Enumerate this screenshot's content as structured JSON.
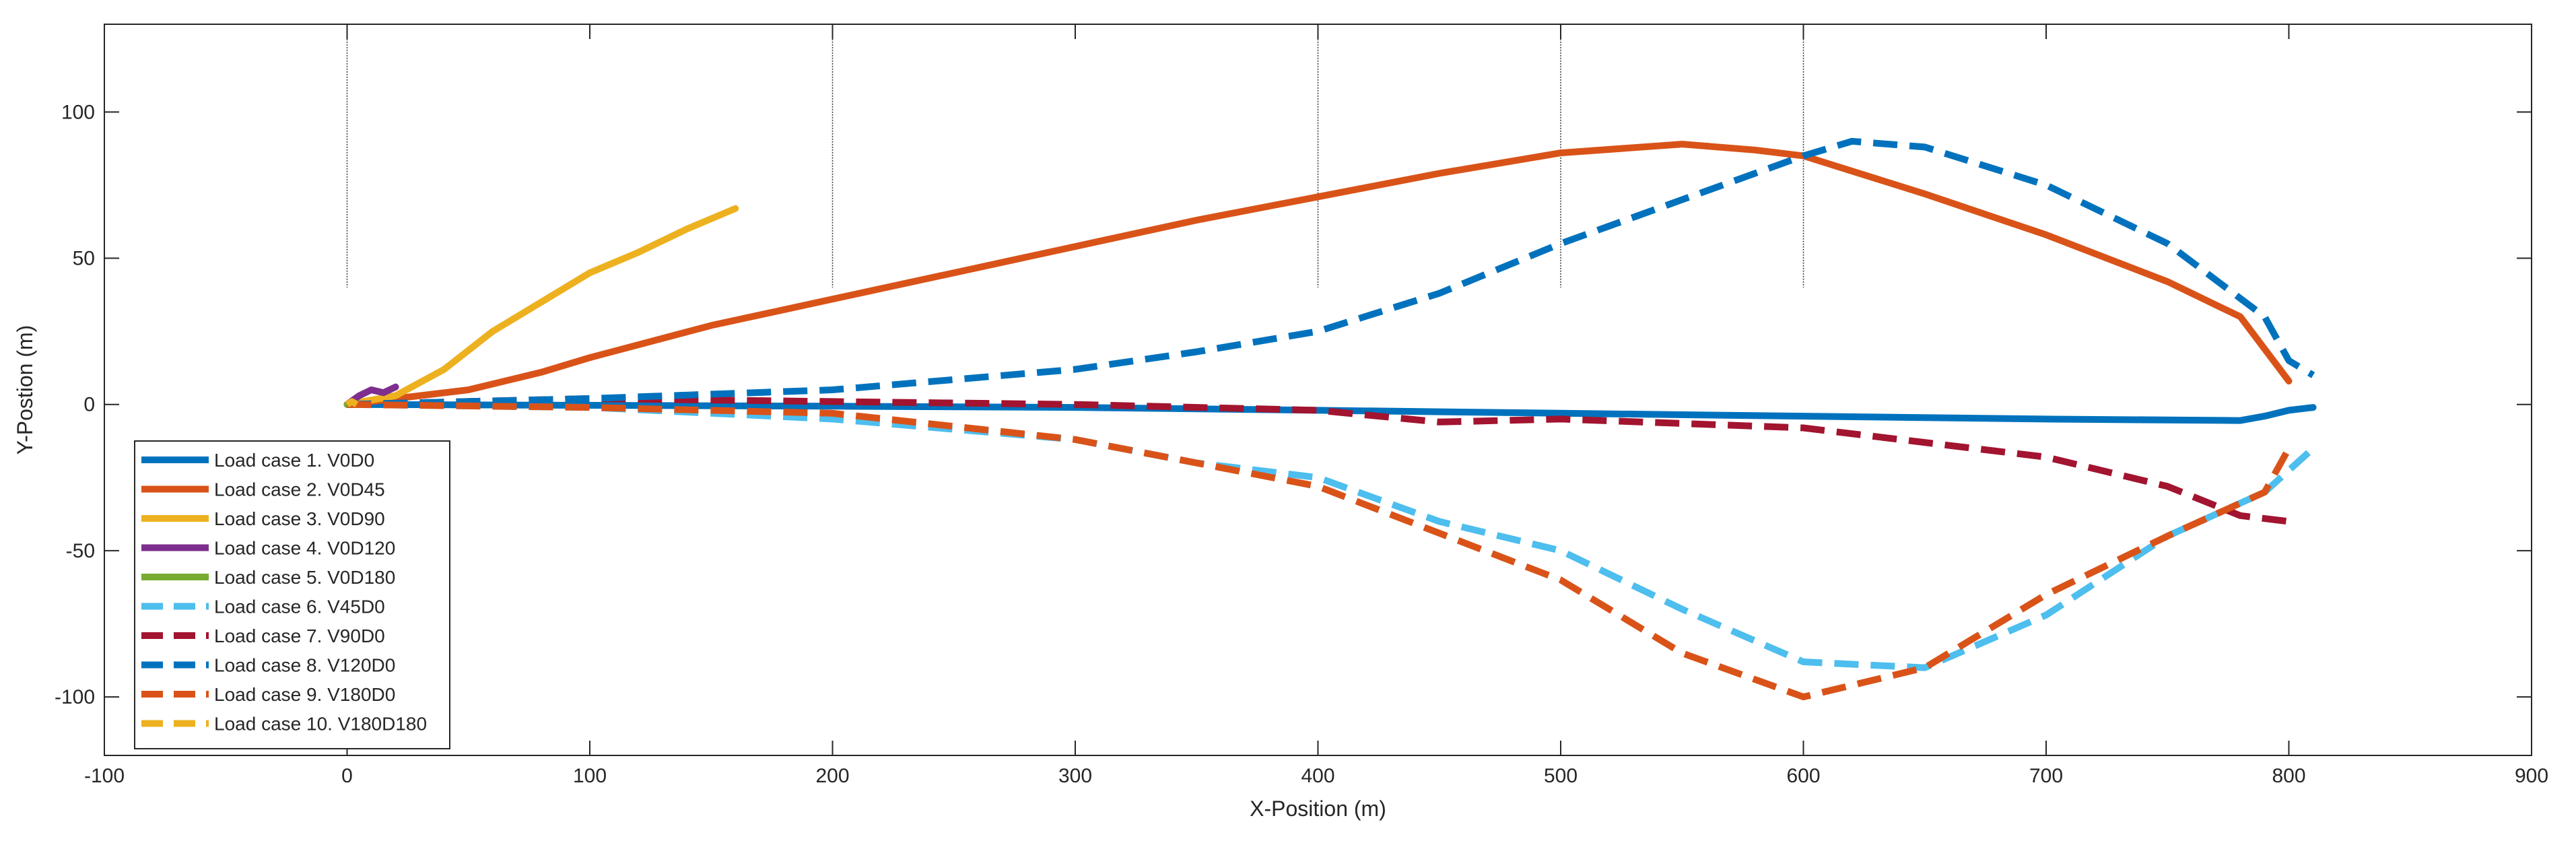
{
  "chart_data": {
    "type": "line",
    "title": "",
    "xlabel": "X-Position (m)",
    "ylabel": "Y-Postion (m)",
    "xlim": [
      -100,
      900
    ],
    "ylim": [
      -120,
      130
    ],
    "xticks": [
      -100,
      0,
      100,
      200,
      300,
      400,
      500,
      600,
      700,
      800,
      900
    ],
    "yticks": [
      -100,
      -50,
      0,
      50,
      100
    ],
    "grid": false,
    "legend_position": "bottom-left",
    "reference_lines": {
      "x": [
        0,
        200,
        400,
        500,
        600
      ],
      "y_range": [
        40,
        125
      ]
    },
    "series": [
      {
        "name": "Load case 1. V0D0",
        "color": "#0072BD",
        "style": "solid",
        "x": [
          0,
          100,
          200,
          300,
          400,
          500,
          600,
          700,
          780,
          790,
          800,
          810
        ],
        "y": [
          0,
          -0.3,
          -0.6,
          -1,
          -2,
          -3,
          -4,
          -5,
          -5.5,
          -4,
          -2,
          -1
        ]
      },
      {
        "name": "Load case 2. V0D45",
        "color": "#D95319",
        "style": "solid",
        "x": [
          0,
          20,
          50,
          80,
          100,
          150,
          200,
          250,
          300,
          350,
          400,
          450,
          500,
          550,
          580,
          600,
          650,
          700,
          750,
          780,
          800
        ],
        "y": [
          0,
          2,
          5,
          11,
          16,
          27,
          36,
          45,
          54,
          63,
          71,
          79,
          86,
          89,
          87,
          85,
          72,
          58,
          42,
          30,
          8
        ]
      },
      {
        "name": "Load case 3. V0D90",
        "color": "#EDB120",
        "style": "solid",
        "x": [
          0,
          20,
          40,
          60,
          80,
          100,
          120,
          140,
          160
        ],
        "y": [
          0,
          3,
          12,
          25,
          35,
          45,
          52,
          60,
          67
        ]
      },
      {
        "name": "Load case 4. V0D120",
        "color": "#7E2F8E",
        "style": "solid",
        "x": [
          0,
          5,
          10,
          15,
          20
        ],
        "y": [
          0,
          3,
          5,
          4,
          6
        ]
      },
      {
        "name": "Load case 5. V0D180",
        "color": "#77AC30",
        "style": "solid",
        "x": [
          0,
          2,
          4
        ],
        "y": [
          0,
          0,
          0
        ]
      },
      {
        "name": "Load case 6. V45D0",
        "color": "#4DBEEE",
        "style": "dashed",
        "x": [
          0,
          100,
          200,
          300,
          350,
          400,
          450,
          500,
          550,
          600,
          650,
          700,
          750,
          790,
          810
        ],
        "y": [
          0,
          -1,
          -5,
          -12,
          -20,
          -25,
          -40,
          -50,
          -70,
          -88,
          -90,
          -72,
          -45,
          -30,
          -15
        ]
      },
      {
        "name": "Load case 7. V90D0",
        "color": "#A2142F",
        "style": "dashed",
        "x": [
          0,
          100,
          200,
          300,
          400,
          450,
          500,
          600,
          700,
          750,
          780,
          800
        ],
        "y": [
          0,
          2,
          1,
          0,
          -2,
          -6,
          -5,
          -8,
          -18,
          -28,
          -38,
          -40
        ]
      },
      {
        "name": "Load case 8. V120D0",
        "color": "#0072BD",
        "style": "dashed",
        "x": [
          0,
          100,
          200,
          300,
          350,
          400,
          450,
          500,
          550,
          600,
          620,
          650,
          700,
          750,
          790,
          800,
          810
        ],
        "y": [
          0,
          2,
          5,
          12,
          18,
          25,
          38,
          55,
          70,
          85,
          90,
          88,
          75,
          55,
          30,
          15,
          10
        ]
      },
      {
        "name": "Load case 9. V180D0",
        "color": "#D95319",
        "style": "dashed",
        "x": [
          0,
          100,
          200,
          300,
          400,
          500,
          550,
          600,
          650,
          700,
          750,
          790,
          800
        ],
        "y": [
          0,
          -1,
          -3,
          -12,
          -28,
          -60,
          -85,
          -100,
          -90,
          -65,
          -45,
          -30,
          -15
        ]
      },
      {
        "name": "Load case 10. V180D180",
        "color": "#EDB120",
        "style": "dashed",
        "x": [
          0,
          2,
          4
        ],
        "y": [
          0,
          1,
          0
        ]
      }
    ]
  }
}
